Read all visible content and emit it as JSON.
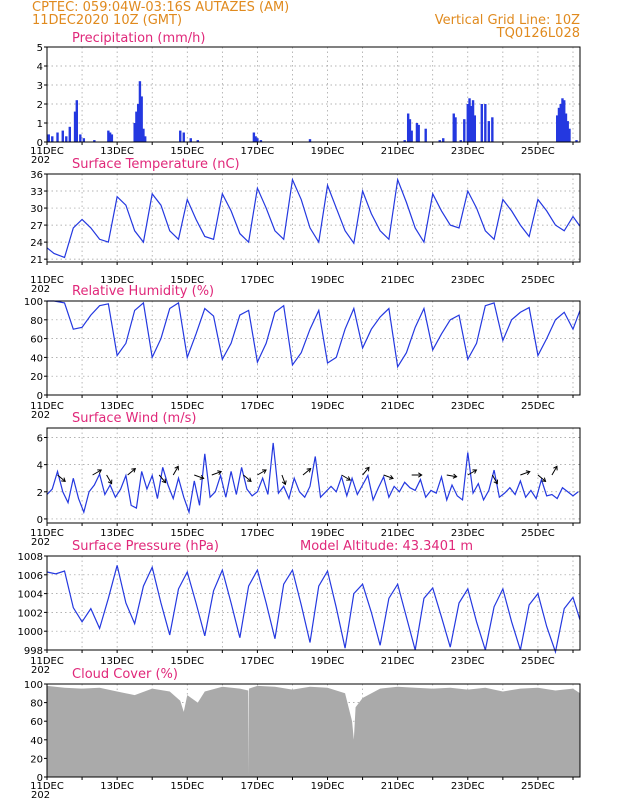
{
  "header": {
    "line1_left": "CPTEC:   059:04W-03:16S   AUTAZES (AM)",
    "line2_left": "11DEC2020 10Z (GMT)",
    "line2_right": "Vertical Grid Line: 10Z",
    "line3_right": "TQ0126L028"
  },
  "x_axis": {
    "labels": [
      "11DEC",
      "13DEC",
      "15DEC",
      "17DEC",
      "19DEC",
      "21DEC",
      "23DEC",
      "25DEC"
    ],
    "year_label": "202",
    "start_day": 11,
    "end_day": 26.2
  },
  "colors": {
    "header": "#e08a1e",
    "title": "#e0287a",
    "series": "#2438e0",
    "cloud": "#aaaaaa"
  },
  "chart_data": [
    {
      "type": "bar",
      "title": "Precipitation (mm/h)",
      "ylim": [
        0,
        5
      ],
      "yticks": [
        "0",
        "1",
        "2",
        "3",
        "4",
        "5"
      ],
      "x": [
        11.05,
        11.15,
        11.3,
        11.45,
        11.55,
        11.65,
        11.8,
        11.85,
        11.95,
        12.05,
        12.35,
        12.75,
        12.8,
        12.85,
        13.5,
        13.55,
        13.6,
        13.65,
        13.7,
        13.75,
        13.8,
        14.8,
        14.9,
        15.1,
        15.3,
        16.9,
        16.95,
        17.0,
        17.1,
        18.5,
        21.2,
        21.3,
        21.35,
        21.4,
        21.55,
        21.6,
        21.8,
        22.2,
        22.3,
        22.6,
        22.65,
        22.8,
        22.9,
        23.0,
        23.05,
        23.1,
        23.15,
        23.2,
        23.4,
        23.5,
        23.6,
        23.7,
        25.55,
        25.6,
        25.65,
        25.7,
        25.75,
        25.8,
        25.85,
        25.9,
        26.1
      ],
      "values": [
        0.4,
        0.3,
        0.5,
        0.6,
        0.3,
        0.8,
        1.6,
        2.2,
        0.4,
        0.2,
        0.1,
        0.6,
        0.5,
        0.4,
        1.0,
        1.6,
        2.0,
        3.2,
        2.4,
        0.7,
        0.3,
        0.6,
        0.5,
        0.2,
        0.1,
        0.5,
        0.3,
        0.2,
        0.1,
        0.15,
        0.1,
        1.5,
        1.2,
        0.6,
        1.0,
        0.9,
        0.7,
        0.1,
        0.2,
        1.5,
        1.3,
        0.1,
        1.2,
        2.0,
        2.3,
        1.9,
        2.2,
        1.4,
        2.0,
        2.0,
        1.1,
        1.3,
        1.4,
        1.8,
        2.0,
        2.3,
        2.2,
        1.5,
        1.1,
        0.7,
        0.1
      ]
    },
    {
      "type": "line",
      "title": "Surface Temperature (nC)",
      "ylim": [
        20.5,
        36
      ],
      "yticks": [
        "21",
        "24",
        "27",
        "30",
        "33",
        "36"
      ],
      "x": [
        11.0,
        11.2,
        11.5,
        11.75,
        12.0,
        12.25,
        12.5,
        12.75,
        13.0,
        13.25,
        13.5,
        13.75,
        14.0,
        14.25,
        14.5,
        14.75,
        15.0,
        15.25,
        15.5,
        15.75,
        16.0,
        16.25,
        16.5,
        16.75,
        17.0,
        17.25,
        17.5,
        17.75,
        18.0,
        18.25,
        18.5,
        18.75,
        19.0,
        19.25,
        19.5,
        19.75,
        20.0,
        20.25,
        20.5,
        20.75,
        21.0,
        21.25,
        21.5,
        21.75,
        22.0,
        22.25,
        22.5,
        22.75,
        23.0,
        23.25,
        23.5,
        23.75,
        24.0,
        24.25,
        24.5,
        24.75,
        25.0,
        25.25,
        25.5,
        25.75,
        26.0,
        26.2
      ],
      "values": [
        23.0,
        22.0,
        21.3,
        26.5,
        28.0,
        26.5,
        24.5,
        24.0,
        32.0,
        30.5,
        26.0,
        24.0,
        32.5,
        30.5,
        26.0,
        24.5,
        31.5,
        28.0,
        25.0,
        24.5,
        32.5,
        29.5,
        25.5,
        24.0,
        33.5,
        30.0,
        26.0,
        24.5,
        35.0,
        31.5,
        26.5,
        24.0,
        34.0,
        30.0,
        26.0,
        23.8,
        33.0,
        29.0,
        26.0,
        24.5,
        35.0,
        31.0,
        26.5,
        24.0,
        32.5,
        29.5,
        27.0,
        26.5,
        33.0,
        30.0,
        26.0,
        24.5,
        31.5,
        29.5,
        27.0,
        25.0,
        31.5,
        29.5,
        27.0,
        26.0,
        28.5,
        26.8
      ]
    },
    {
      "type": "line",
      "title": "Relative Humidity (%)",
      "ylim": [
        0,
        100
      ],
      "yticks": [
        "0",
        "20",
        "40",
        "60",
        "80",
        "100"
      ],
      "x": [
        11.0,
        11.2,
        11.5,
        11.75,
        12.0,
        12.25,
        12.5,
        12.75,
        13.0,
        13.25,
        13.5,
        13.75,
        14.0,
        14.25,
        14.5,
        14.75,
        15.0,
        15.25,
        15.5,
        15.75,
        16.0,
        16.25,
        16.5,
        16.75,
        17.0,
        17.25,
        17.5,
        17.75,
        18.0,
        18.25,
        18.5,
        18.75,
        19.0,
        19.25,
        19.5,
        19.75,
        20.0,
        20.25,
        20.5,
        20.75,
        21.0,
        21.25,
        21.5,
        21.75,
        22.0,
        22.25,
        22.5,
        22.75,
        23.0,
        23.25,
        23.5,
        23.75,
        24.0,
        24.25,
        24.5,
        24.75,
        25.0,
        25.25,
        25.5,
        25.75,
        26.0,
        26.2
      ],
      "values": [
        100,
        100,
        98,
        70,
        72,
        85,
        95,
        97,
        42,
        55,
        90,
        98,
        40,
        60,
        92,
        98,
        40,
        65,
        92,
        84,
        38,
        55,
        85,
        90,
        35,
        55,
        88,
        95,
        32,
        45,
        70,
        90,
        34,
        40,
        70,
        92,
        50,
        70,
        83,
        92,
        30,
        45,
        72,
        92,
        48,
        65,
        80,
        85,
        38,
        55,
        95,
        98,
        58,
        80,
        88,
        93,
        42,
        60,
        80,
        88,
        70,
        90
      ]
    },
    {
      "type": "line",
      "title": "Surface Wind (m/s)",
      "ylim": [
        -0.3,
        6.7
      ],
      "yticks": [
        "0",
        "2",
        "4",
        "6"
      ],
      "x": [
        11.0,
        11.15,
        11.3,
        11.45,
        11.6,
        11.75,
        11.9,
        12.05,
        12.2,
        12.35,
        12.5,
        12.65,
        12.8,
        12.95,
        13.1,
        13.25,
        13.4,
        13.55,
        13.7,
        13.85,
        14.0,
        14.15,
        14.3,
        14.45,
        14.6,
        14.75,
        14.9,
        15.05,
        15.2,
        15.35,
        15.5,
        15.65,
        15.8,
        15.95,
        16.1,
        16.25,
        16.4,
        16.55,
        16.7,
        16.85,
        17.0,
        17.15,
        17.3,
        17.45,
        17.6,
        17.75,
        17.9,
        18.05,
        18.2,
        18.35,
        18.5,
        18.65,
        18.8,
        18.95,
        19.1,
        19.25,
        19.4,
        19.55,
        19.7,
        19.85,
        20.0,
        20.15,
        20.3,
        20.45,
        20.6,
        20.75,
        20.9,
        21.05,
        21.2,
        21.35,
        21.5,
        21.65,
        21.8,
        21.95,
        22.1,
        22.25,
        22.4,
        22.55,
        22.7,
        22.85,
        23.0,
        23.15,
        23.3,
        23.45,
        23.6,
        23.75,
        23.9,
        24.05,
        24.2,
        24.35,
        24.5,
        24.65,
        24.8,
        24.95,
        25.1,
        25.25,
        25.4,
        25.55,
        25.7,
        25.85,
        26.0,
        26.15
      ],
      "values": [
        1.8,
        2.2,
        3.5,
        2.0,
        1.2,
        3.0,
        1.5,
        0.5,
        2.0,
        2.5,
        3.3,
        1.8,
        2.5,
        1.6,
        2.2,
        3.2,
        1.0,
        0.8,
        3.5,
        2.2,
        3.2,
        1.5,
        3.8,
        2.5,
        1.5,
        3.0,
        1.6,
        0.5,
        2.8,
        1.0,
        4.8,
        1.6,
        2.0,
        3.2,
        1.6,
        3.5,
        1.8,
        3.8,
        2.2,
        1.7,
        2.0,
        3.0,
        1.8,
        5.6,
        1.9,
        2.4,
        1.5,
        3.0,
        2.0,
        1.6,
        2.4,
        4.6,
        1.6,
        2.0,
        2.4,
        2.0,
        3.1,
        1.7,
        3.0,
        1.8,
        2.5,
        3.2,
        1.4,
        2.3,
        3.1,
        1.6,
        2.4,
        2.0,
        2.7,
        2.3,
        2.1,
        2.9,
        1.6,
        2.1,
        1.9,
        3.1,
        1.4,
        2.5,
        1.7,
        1.4,
        4.9,
        1.9,
        2.6,
        1.4,
        2.1,
        3.6,
        1.6,
        1.9,
        2.3,
        1.8,
        2.8,
        1.6,
        2.1,
        1.5,
        2.9,
        1.7,
        1.8,
        1.5,
        2.3,
        2.0,
        1.7,
        2.0
      ]
    },
    {
      "type": "line",
      "title": "Surface Pressure (hPa)",
      "annotation": "Model Altitude: 43.3401 m",
      "ylim": [
        998,
        1008
      ],
      "yticks": [
        "998",
        "1000",
        "1002",
        "1004",
        "1006",
        "1008"
      ],
      "x": [
        11.0,
        11.25,
        11.5,
        11.75,
        12.0,
        12.25,
        12.5,
        12.75,
        13.0,
        13.25,
        13.5,
        13.75,
        14.0,
        14.25,
        14.5,
        14.75,
        15.0,
        15.25,
        15.5,
        15.75,
        16.0,
        16.25,
        16.5,
        16.75,
        17.0,
        17.25,
        17.5,
        17.75,
        18.0,
        18.25,
        18.5,
        18.75,
        19.0,
        19.25,
        19.5,
        19.75,
        20.0,
        20.25,
        20.5,
        20.75,
        21.0,
        21.25,
        21.5,
        21.75,
        22.0,
        22.25,
        22.5,
        22.75,
        23.0,
        23.25,
        23.5,
        23.75,
        24.0,
        24.25,
        24.5,
        24.75,
        25.0,
        25.25,
        25.5,
        25.75,
        26.0,
        26.2
      ],
      "values": [
        1006.3,
        1006.1,
        1006.4,
        1002.5,
        1001.0,
        1002.4,
        1000.3,
        1003.5,
        1007.0,
        1003.0,
        1000.8,
        1004.8,
        1006.8,
        1003.0,
        999.6,
        1004.5,
        1006.3,
        1003.0,
        999.5,
        1004.3,
        1006.5,
        1003.0,
        999.3,
        1004.8,
        1006.5,
        1003.0,
        999.2,
        1005.0,
        1006.5,
        1002.8,
        998.8,
        1004.8,
        1006.4,
        1002.5,
        998.2,
        1004.0,
        1005.0,
        1002.0,
        998.5,
        1003.5,
        1005.0,
        1001.5,
        998.0,
        1003.5,
        1004.6,
        1001.5,
        998.3,
        1003.0,
        1004.5,
        1001.0,
        998.0,
        1002.6,
        1004.5,
        1001.0,
        998.0,
        1002.8,
        1004.0,
        1000.5,
        997.8,
        1002.4,
        1003.6,
        1001.2
      ]
    },
    {
      "type": "area",
      "title": "Cloud Cover (%)",
      "ylim": [
        0,
        100
      ],
      "yticks": [
        "0",
        "20",
        "40",
        "60",
        "80",
        "100"
      ],
      "x": [
        11.0,
        11.5,
        12.0,
        12.5,
        13.0,
        13.5,
        14.0,
        14.5,
        14.8,
        14.9,
        15.0,
        15.3,
        15.5,
        16.0,
        16.5,
        16.74,
        16.75,
        16.76,
        17.0,
        17.5,
        18.0,
        18.5,
        19.0,
        19.5,
        19.7,
        19.75,
        19.8,
        20.0,
        20.5,
        21.0,
        21.5,
        22.0,
        22.5,
        23.0,
        23.5,
        24.0,
        24.5,
        25.0,
        25.5,
        26.0,
        26.2
      ],
      "values": [
        98,
        96,
        95,
        96,
        92,
        88,
        95,
        92,
        82,
        70,
        88,
        80,
        92,
        97,
        95,
        93,
        2,
        95,
        98,
        97,
        94,
        97,
        96,
        90,
        60,
        40,
        75,
        85,
        95,
        97,
        96,
        95,
        96,
        94,
        96,
        92,
        95,
        96,
        93,
        95,
        90
      ]
    }
  ]
}
